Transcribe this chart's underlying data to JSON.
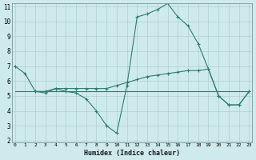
{
  "line1_x": [
    0,
    1,
    2,
    3,
    4,
    5,
    6,
    7,
    8,
    9,
    10,
    11,
    12,
    13,
    14,
    15,
    16,
    17,
    18,
    19,
    20,
    21,
    22,
    23
  ],
  "line1_y": [
    7.0,
    6.5,
    5.3,
    5.2,
    5.5,
    5.3,
    5.2,
    4.8,
    4.0,
    3.0,
    2.5,
    5.7,
    10.3,
    10.5,
    10.8,
    11.2,
    10.3,
    9.7,
    8.5,
    6.8,
    5.0,
    4.4,
    4.4,
    5.3
  ],
  "line2_x": [
    0,
    1,
    2,
    3,
    4,
    5,
    6,
    7,
    8,
    9,
    10,
    11,
    12,
    13,
    14,
    15,
    16,
    17,
    18,
    19,
    20,
    21,
    22,
    23
  ],
  "line2_y": [
    5.3,
    5.3,
    5.3,
    5.3,
    5.3,
    5.3,
    5.3,
    5.3,
    5.3,
    5.3,
    5.3,
    5.3,
    5.3,
    5.3,
    5.3,
    5.3,
    5.3,
    5.3,
    5.3,
    5.3,
    5.3,
    5.3,
    5.3,
    5.3
  ],
  "line3_x": [
    2,
    3,
    4,
    5,
    6,
    7,
    8,
    9,
    10,
    11,
    12,
    13,
    14,
    15,
    16,
    17,
    18,
    19,
    20,
    21,
    22,
    23
  ],
  "line3_y": [
    5.3,
    5.3,
    5.5,
    5.5,
    5.5,
    5.5,
    5.5,
    5.5,
    5.7,
    5.9,
    6.1,
    6.3,
    6.4,
    6.5,
    6.6,
    6.7,
    6.7,
    6.8,
    5.0,
    4.4,
    4.4,
    5.3
  ],
  "line_color": "#2e7d6e",
  "bg_color": "#ceeaec",
  "grid_color": "#aecfd2",
  "xlabel": "Humidex (Indice chaleur)",
  "ylim_min": 2,
  "ylim_max": 11,
  "xlim_min": 0,
  "xlim_max": 23,
  "yticks": [
    2,
    3,
    4,
    5,
    6,
    7,
    8,
    9,
    10,
    11
  ],
  "xticks": [
    0,
    1,
    2,
    3,
    4,
    5,
    6,
    7,
    8,
    9,
    10,
    11,
    12,
    13,
    14,
    15,
    16,
    17,
    18,
    19,
    20,
    21,
    22,
    23
  ]
}
